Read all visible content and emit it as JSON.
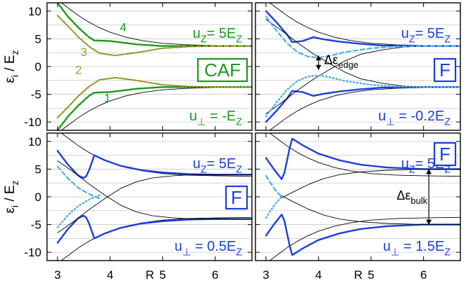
{
  "chart_data": [
    {
      "id": "caf",
      "type": "line",
      "axes": {
        "x_range": [
          2.8,
          6.7
        ],
        "y_range": [
          -11.5,
          11.5
        ],
        "x_ticks": [
          3,
          4,
          5,
          6
        ],
        "y_ticks": [
          -10,
          -5,
          0,
          5,
          10
        ]
      },
      "phase_badge": "CAF",
      "u_z_label": {
        "base": "u",
        "sub": "Z",
        "eq": "= 5E",
        "tail": "Z"
      },
      "u_perp_label": {
        "base": "u",
        "sub": "⊥",
        "eq": " = -E",
        "tail": "Z"
      },
      "mode_numbers": [
        "4",
        "3",
        "2",
        "1"
      ],
      "colors": {
        "main": "#1a9a1a",
        "dash": "#a0a020",
        "dot": "#a0a020",
        "text": "#1a9a1a",
        "badge": "#1a9a1a",
        "numbers": [
          "#1a9a1a",
          "#a0a020",
          "#a0a020",
          "#1a9a1a"
        ]
      },
      "series": [
        {
          "style": "envelope",
          "x": [
            3.0,
            3.2,
            3.4,
            3.6,
            3.8,
            4.0,
            4.3,
            4.6,
            5.0,
            5.5,
            6.0,
            6.7
          ],
          "y": [
            12.0,
            10.6,
            9.2,
            8.0,
            7.0,
            6.2,
            5.3,
            4.7,
            4.2,
            3.9,
            3.8,
            3.7
          ]
        },
        {
          "style": "envelope",
          "x": [
            3.0,
            3.2,
            3.4,
            3.6,
            3.8,
            4.0,
            4.3,
            4.6,
            5.0,
            5.5,
            6.0,
            6.7
          ],
          "y": [
            -12.0,
            -10.6,
            -9.2,
            -8.0,
            -7.0,
            -6.2,
            -5.3,
            -4.7,
            -4.2,
            -3.9,
            -3.8,
            -3.7
          ]
        },
        {
          "style": "main",
          "x": [
            3.0,
            3.2,
            3.4,
            3.6,
            3.7,
            4.0,
            4.5,
            5.0,
            6.0,
            6.7
          ],
          "y": [
            11.5,
            9.0,
            7.0,
            5.3,
            4.7,
            4.6,
            4.0,
            3.7,
            3.7,
            3.7
          ]
        },
        {
          "style": "main",
          "x": [
            3.0,
            3.2,
            3.4,
            3.6,
            3.7,
            4.0,
            4.5,
            5.0,
            6.0,
            6.7
          ],
          "y": [
            -11.5,
            -9.0,
            -7.0,
            -5.3,
            -4.7,
            -4.6,
            -4.0,
            -3.7,
            -3.7,
            -3.7
          ]
        },
        {
          "style": "mid",
          "x": [
            3.0,
            3.2,
            3.4,
            3.6,
            3.8,
            4.1,
            4.5,
            5.0,
            5.5,
            6.0,
            6.7
          ],
          "y": [
            9.2,
            7.3,
            5.3,
            3.6,
            2.4,
            2.0,
            2.5,
            3.3,
            3.6,
            3.7,
            3.7
          ]
        },
        {
          "style": "mid",
          "x": [
            3.0,
            3.2,
            3.4,
            3.6,
            3.8,
            4.1,
            4.5,
            5.0,
            5.5,
            6.0,
            6.7
          ],
          "y": [
            -9.2,
            -7.3,
            -5.3,
            -3.6,
            -2.4,
            -2.0,
            -2.5,
            -3.3,
            -3.6,
            -3.7,
            -3.7
          ]
        },
        {
          "style": "dash",
          "x": [
            3.0,
            3.2,
            3.4,
            3.6,
            3.8,
            4.1,
            4.5,
            5.0,
            5.5,
            6.0,
            6.7
          ],
          "y": [
            9.2,
            7.3,
            5.3,
            3.6,
            2.4,
            2.0,
            2.5,
            3.3,
            3.6,
            3.7,
            3.7
          ]
        },
        {
          "style": "dot",
          "x": [
            3.0,
            3.2,
            3.4,
            3.6,
            3.8,
            4.1,
            4.5,
            5.0,
            5.5,
            6.0,
            6.7
          ],
          "y": [
            -9.2,
            -7.3,
            -5.3,
            -3.6,
            -2.4,
            -2.0,
            -2.5,
            -3.3,
            -3.6,
            -3.7,
            -3.7
          ]
        }
      ]
    },
    {
      "id": "f1",
      "type": "line",
      "axes": {
        "x_range": [
          2.8,
          6.7
        ],
        "y_range": [
          -11.5,
          11.5
        ],
        "x_ticks": [
          3,
          4,
          5,
          6
        ],
        "y_ticks": [
          -10,
          -5,
          0,
          5,
          10
        ]
      },
      "phase_badge": "F",
      "u_z_label": {
        "base": "u",
        "sub": "Z",
        "eq": "= 5E",
        "tail": "Z"
      },
      "u_perp_label": {
        "base": "u",
        "sub": "⊥",
        "eq": " = -0.2E",
        "tail": "Z"
      },
      "annotation": {
        "text": "Δε",
        "sub": "edge",
        "x": 4.0,
        "y_top": 2.0,
        "y_bottom": -0.6
      },
      "colors": {
        "main": "#1a3fe0",
        "dash": "#4aaee8",
        "dot": "#4aaee8",
        "text": "#1a3fe0",
        "badge": "#1a3fe0"
      },
      "series": [
        {
          "style": "envelope",
          "x": [
            3.0,
            3.2,
            3.4,
            3.6,
            3.8,
            4.0,
            4.3,
            4.6,
            5.0,
            5.5,
            6.0,
            6.7
          ],
          "y": [
            12.0,
            10.6,
            9.2,
            8.0,
            7.0,
            6.2,
            5.3,
            4.7,
            4.2,
            3.9,
            3.8,
            3.7
          ]
        },
        {
          "style": "envelope",
          "x": [
            3.0,
            3.2,
            3.4,
            3.6,
            3.8,
            4.0,
            4.3,
            4.6,
            5.0,
            5.5,
            6.0,
            6.7
          ],
          "y": [
            -12.0,
            -10.6,
            -9.2,
            -8.0,
            -7.0,
            -6.2,
            -5.3,
            -4.7,
            -4.2,
            -3.9,
            -3.8,
            -3.7
          ]
        },
        {
          "style": "main",
          "x": [
            3.0,
            3.2,
            3.4,
            3.5,
            3.7,
            3.9,
            4.1,
            4.4,
            4.8,
            5.2,
            5.8,
            6.7
          ],
          "y": [
            10.0,
            8.0,
            5.8,
            4.4,
            4.6,
            5.3,
            4.9,
            4.5,
            4.1,
            3.8,
            3.7,
            3.7
          ]
        },
        {
          "style": "main",
          "x": [
            3.0,
            3.2,
            3.4,
            3.5,
            3.7,
            3.9,
            4.1,
            4.4,
            4.8,
            5.2,
            5.8,
            6.7
          ],
          "y": [
            -10.0,
            -8.0,
            -5.8,
            -4.4,
            -4.6,
            -5.3,
            -4.9,
            -4.5,
            -4.1,
            -3.8,
            -3.7,
            -3.7
          ]
        },
        {
          "style": "mid",
          "x": [
            3.0,
            3.3,
            3.6,
            3.9,
            4.2,
            4.5,
            4.8,
            5.2,
            5.6,
            6.0,
            6.7
          ],
          "y": [
            -8.5,
            -6.5,
            -4.3,
            -2.3,
            -0.6,
            1.0,
            2.2,
            3.0,
            3.5,
            3.7,
            3.7
          ]
        },
        {
          "style": "mid",
          "x": [
            3.0,
            3.3,
            3.6,
            3.9,
            4.2,
            4.5,
            4.8,
            5.2,
            5.6,
            6.0,
            6.7
          ],
          "y": [
            8.5,
            6.5,
            4.3,
            2.3,
            0.6,
            -1.0,
            -2.2,
            -3.0,
            -3.5,
            -3.7,
            -3.7
          ]
        },
        {
          "style": "dash",
          "x": [
            3.0,
            3.2,
            3.4,
            3.6,
            3.8,
            4.0,
            4.2,
            4.5,
            5.0,
            5.5,
            6.0,
            6.7
          ],
          "y": [
            9.0,
            6.5,
            4.2,
            2.6,
            1.8,
            1.6,
            1.9,
            2.6,
            3.3,
            3.6,
            3.7,
            3.7
          ]
        },
        {
          "style": "dot",
          "x": [
            3.0,
            3.2,
            3.4,
            3.6,
            3.8,
            4.0,
            4.2,
            4.5,
            5.0,
            5.5,
            6.0,
            6.7
          ],
          "y": [
            -9.0,
            -6.5,
            -4.2,
            -2.6,
            -1.8,
            -1.6,
            -1.9,
            -2.6,
            -3.3,
            -3.6,
            -3.7,
            -3.7
          ]
        }
      ]
    },
    {
      "id": "f2",
      "type": "line",
      "axes": {
        "x_range": [
          2.8,
          6.7
        ],
        "y_range": [
          -11.5,
          11.5
        ],
        "x_ticks": [
          3,
          4,
          5,
          6
        ],
        "y_ticks": [
          -10,
          -5,
          0,
          5,
          10
        ]
      },
      "phase_badge": "F",
      "u_z_label": {
        "base": "u",
        "sub": "Z",
        "eq": "= 5E",
        "tail": "Z"
      },
      "u_perp_label": {
        "base": "u",
        "sub": "⊥",
        "eq": " = 0.5E",
        "tail": "Z"
      },
      "colors": {
        "main": "#1a3fe0",
        "dash": "#4aaee8",
        "dot": "#4aaee8",
        "text": "#1a3fe0",
        "badge": "#1a3fe0"
      },
      "series": [
        {
          "style": "envelope",
          "x": [
            3.0,
            3.2,
            3.4,
            3.6,
            3.8,
            4.0,
            4.3,
            4.6,
            5.0,
            5.5,
            6.0,
            6.7
          ],
          "y": [
            12.0,
            10.6,
            9.2,
            8.0,
            7.0,
            6.2,
            5.3,
            4.7,
            4.2,
            3.9,
            3.8,
            3.7
          ]
        },
        {
          "style": "envelope",
          "x": [
            3.0,
            3.2,
            3.4,
            3.6,
            3.8,
            4.0,
            4.3,
            4.6,
            5.0,
            5.5,
            6.0,
            6.7
          ],
          "y": [
            -12.0,
            -10.6,
            -9.2,
            -8.0,
            -7.0,
            -6.2,
            -5.3,
            -4.7,
            -4.2,
            -3.9,
            -3.8,
            -3.7
          ]
        },
        {
          "style": "main",
          "x": [
            3.0,
            3.2,
            3.4,
            3.5,
            3.55,
            3.6,
            3.65,
            3.7,
            3.9,
            4.2,
            4.6,
            5.0,
            5.5,
            6.0,
            6.7
          ],
          "y": [
            8.3,
            5.8,
            3.8,
            3.4,
            3.8,
            4.8,
            6.1,
            7.5,
            6.6,
            5.6,
            4.8,
            4.4,
            4.1,
            4.0,
            4.0
          ]
        },
        {
          "style": "main",
          "x": [
            3.0,
            3.2,
            3.4,
            3.5,
            3.55,
            3.6,
            3.65,
            3.7,
            3.9,
            4.2,
            4.6,
            5.0,
            5.5,
            6.0,
            6.7
          ],
          "y": [
            -8.3,
            -5.8,
            -3.8,
            -3.4,
            -3.8,
            -4.8,
            -6.1,
            -7.5,
            -6.6,
            -5.6,
            -4.8,
            -4.4,
            -4.1,
            -4.0,
            -4.0
          ]
        },
        {
          "style": "mid",
          "x": [
            3.0,
            3.3,
            3.6,
            3.9,
            4.2,
            4.5,
            4.8,
            5.2,
            5.6,
            6.0,
            6.7
          ],
          "y": [
            -6.5,
            -4.5,
            -2.3,
            -0.3,
            1.5,
            2.7,
            3.4,
            3.8,
            4.0,
            4.0,
            4.0
          ]
        },
        {
          "style": "mid",
          "x": [
            3.0,
            3.3,
            3.6,
            3.9,
            4.2,
            4.5,
            4.8,
            5.2,
            5.6,
            6.0,
            6.7
          ],
          "y": [
            6.5,
            4.5,
            2.3,
            0.3,
            -1.5,
            -2.7,
            -3.4,
            -3.8,
            -4.0,
            -4.0,
            -4.0
          ]
        },
        {
          "style": "dash",
          "x": [
            3.0,
            3.2,
            3.4,
            3.6,
            3.8
          ],
          "y": [
            5.5,
            3.3,
            1.6,
            0.5,
            -0.3
          ]
        },
        {
          "style": "dot",
          "x": [
            3.0,
            3.2,
            3.4,
            3.6,
            3.8
          ],
          "y": [
            -5.5,
            -3.3,
            -1.6,
            -0.5,
            0.3
          ]
        }
      ]
    },
    {
      "id": "f3",
      "type": "line",
      "axes": {
        "x_range": [
          2.8,
          6.7
        ],
        "y_range": [
          -11.5,
          11.5
        ],
        "x_ticks": [
          3,
          4,
          5,
          6
        ],
        "y_ticks": [
          -10,
          -5,
          0,
          5,
          10
        ]
      },
      "phase_badge": "F",
      "u_z_label": {
        "base": "u",
        "sub": "Z",
        "eq": "= 5E",
        "tail": "Z"
      },
      "u_perp_label": {
        "base": "u",
        "sub": "⊥",
        "eq": " = 1.5E",
        "tail": "Z"
      },
      "annotation": {
        "text": "Δε",
        "sub": "bulk",
        "x": 6.1,
        "y_top": 5.0,
        "y_bottom": -5.0
      },
      "colors": {
        "main": "#1a3fe0",
        "dash": "#4aaee8",
        "dot": "#4aaee8",
        "text": "#1a3fe0",
        "badge": "#1a3fe0"
      },
      "series": [
        {
          "style": "envelope",
          "x": [
            3.0,
            3.2,
            3.4,
            3.6,
            3.8,
            4.0,
            4.3,
            4.6,
            5.0,
            5.5,
            6.0,
            6.7
          ],
          "y": [
            12.0,
            10.6,
            9.2,
            8.0,
            7.0,
            6.2,
            5.3,
            4.7,
            4.2,
            3.9,
            3.8,
            3.7
          ]
        },
        {
          "style": "envelope",
          "x": [
            3.0,
            3.2,
            3.4,
            3.6,
            3.8,
            4.0,
            4.3,
            4.6,
            5.0,
            5.5,
            6.0,
            6.7
          ],
          "y": [
            -12.0,
            -10.6,
            -9.2,
            -8.0,
            -7.0,
            -6.2,
            -5.3,
            -4.7,
            -4.2,
            -3.9,
            -3.8,
            -3.7
          ]
        },
        {
          "style": "main",
          "x": [
            3.0,
            3.15,
            3.3,
            3.35,
            3.4,
            3.45,
            3.5,
            3.7,
            4.0,
            4.4,
            4.8,
            5.3,
            6.0,
            6.7
          ],
          "y": [
            7.0,
            5.0,
            3.2,
            4.3,
            6.5,
            8.8,
            10.5,
            9.3,
            7.8,
            6.6,
            5.8,
            5.3,
            5.0,
            5.0
          ]
        },
        {
          "style": "main",
          "x": [
            3.0,
            3.15,
            3.3,
            3.35,
            3.4,
            3.45,
            3.5,
            3.7,
            4.0,
            4.4,
            4.8,
            5.3,
            6.0,
            6.7
          ],
          "y": [
            -7.0,
            -5.0,
            -3.2,
            -4.3,
            -6.5,
            -8.8,
            -10.5,
            -9.3,
            -7.8,
            -6.6,
            -5.8,
            -5.3,
            -5.0,
            -5.0
          ]
        },
        {
          "style": "mid",
          "x": [
            3.3,
            3.5,
            3.8,
            4.1,
            4.4,
            4.8,
            5.3,
            6.0,
            6.7
          ],
          "y": [
            -0.2,
            0.8,
            2.2,
            3.3,
            4.0,
            4.5,
            4.8,
            5.0,
            5.0
          ]
        },
        {
          "style": "mid",
          "x": [
            3.3,
            3.5,
            3.8,
            4.1,
            4.4,
            4.8,
            5.3,
            6.0,
            6.7
          ],
          "y": [
            0.2,
            -0.8,
            -2.2,
            -3.3,
            -4.0,
            -4.5,
            -4.8,
            -5.0,
            -5.0
          ]
        },
        {
          "style": "dash",
          "x": [
            3.0,
            3.1,
            3.2,
            3.3
          ],
          "y": [
            3.8,
            2.3,
            1.0,
            0.0
          ]
        },
        {
          "style": "dot",
          "x": [
            3.0,
            3.1,
            3.2,
            3.3
          ],
          "y": [
            -3.8,
            -2.3,
            -1.0,
            0.0
          ]
        }
      ]
    }
  ],
  "axis_labels": {
    "y_label": {
      "base": "ε",
      "sub": "i",
      "rest": " / E",
      "tail": "z"
    },
    "x_label": "R"
  }
}
